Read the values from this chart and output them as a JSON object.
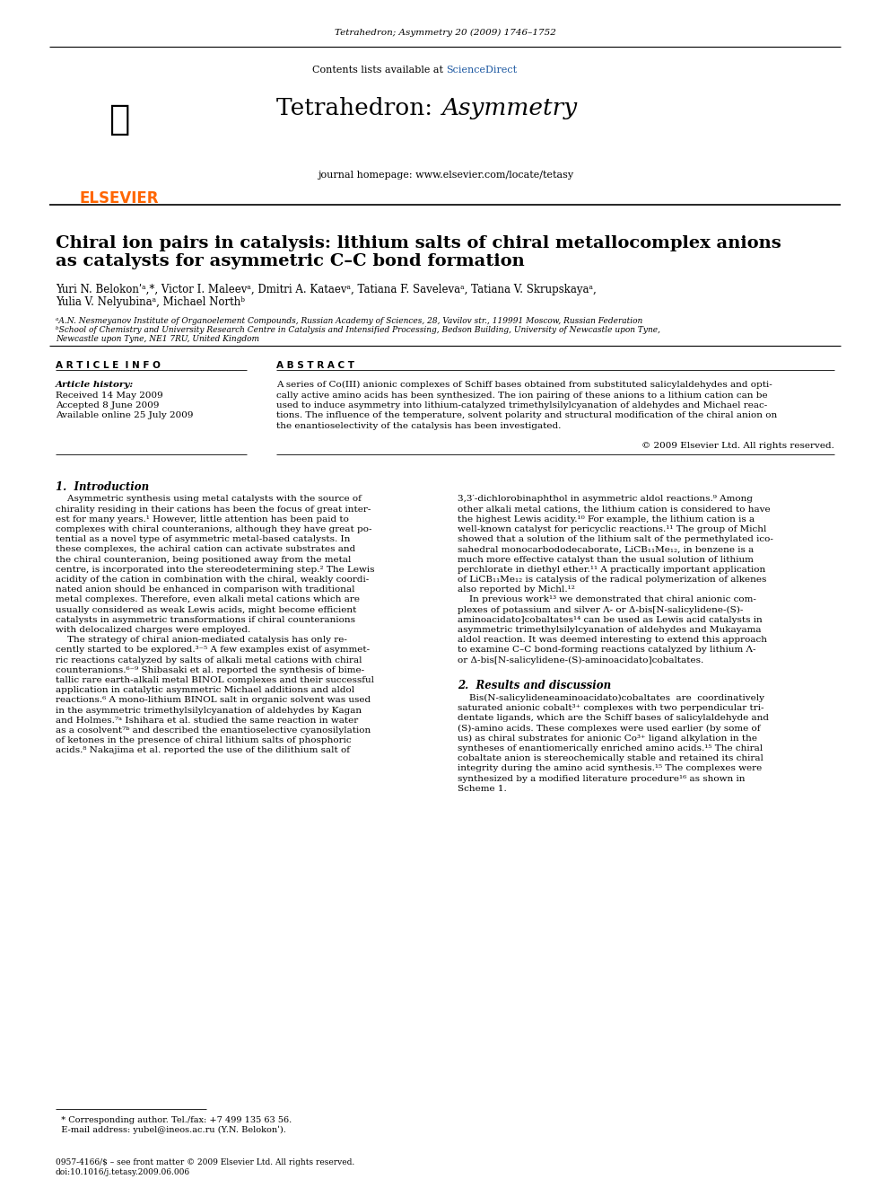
{
  "journal_ref": "Tetrahedron; Asymmetry 20 (2009) 1746–1752",
  "contents_text": "Contents lists available at ",
  "sciencedirect_text": "ScienceDirect",
  "journal_name1": "Tetrahedron: ",
  "journal_name2": "Asymmetry",
  "journal_url": "journal homepage: www.elsevier.com/locate/tetasy",
  "elsevier_text": "ELSEVIER",
  "paper_title_line1": "Chiral ion pairs in catalysis: lithium salts of chiral metallocomplex anions",
  "paper_title_line2": "as catalysts for asymmetric C–C bond formation",
  "authors_line1": "Yuri N. Belokonʹᵃ,*, Victor I. Maleevᵃ, Dmitri A. Kataevᵃ, Tatiana F. Savelevaᵃ, Tatiana V. Skrupskayaᵃ,",
  "authors_line2": "Yulia V. Nelyubinaᵃ, Michael Northᵇ",
  "affil_a": "ᵃA.N. Nesmeyanov Institute of Organoelement Compounds, Russian Academy of Sciences, 28, Vavilov str., 119991 Moscow, Russian Federation",
  "affil_b": "ᵇSchool of Chemistry and University Research Centre in Catalysis and Intensified Processing, Bedson Building, University of Newcastle upon Tyne,",
  "affil_b2": "Newcastle upon Tyne, NE1 7RU, United Kingdom",
  "article_info_header": "A R T I C L E  I N F O",
  "abstract_header": "A B S T R A C T",
  "article_history_label": "Article history:",
  "received": "Received 14 May 2009",
  "accepted": "Accepted 8 June 2009",
  "available": "Available online 25 July 2009",
  "abstract_text_lines": [
    "A series of Co(III) anionic complexes of Schiff bases obtained from substituted salicylaldehydes and opti-",
    "cally active amino acids has been synthesized. The ion pairing of these anions to a lithium cation can be",
    "used to induce asymmetry into lithium-catalyzed trimethylsilylcyanation of aldehydes and Michael reac-",
    "tions. The influence of the temperature, solvent polarity and structural modification of the chiral anion on",
    "the enantioselectivity of the catalysis has been investigated."
  ],
  "copyright": "© 2009 Elsevier Ltd. All rights reserved.",
  "intro_header": "1.  Introduction",
  "intro_col1_lines": [
    "    Asymmetric synthesis using metal catalysts with the source of",
    "chirality residing in their cations has been the focus of great inter-",
    "est for many years.¹ However, little attention has been paid to",
    "complexes with chiral counteranions, although they have great po-",
    "tential as a novel type of asymmetric metal-based catalysts. In",
    "these complexes, the achiral cation can activate substrates and",
    "the chiral counteranion, being positioned away from the metal",
    "centre, is incorporated into the stereodetermining step.² The Lewis",
    "acidity of the cation in combination with the chiral, weakly coordi-",
    "nated anion should be enhanced in comparison with traditional",
    "metal complexes. Therefore, even alkali metal cations which are",
    "usually considered as weak Lewis acids, might become efficient",
    "catalysts in asymmetric transformations if chiral counteranions",
    "with delocalized charges were employed.",
    "    The strategy of chiral anion-mediated catalysis has only re-",
    "cently started to be explored.³⁻⁵ A few examples exist of asymmet-",
    "ric reactions catalyzed by salts of alkali metal cations with chiral",
    "counteranions.⁶⁻⁹ Shibasaki et al. reported the synthesis of bime-",
    "tallic rare earth-alkali metal BINOL complexes and their successful",
    "application in catalytic asymmetric Michael additions and aldol",
    "reactions.⁶ A mono-lithium BINOL salt in organic solvent was used",
    "in the asymmetric trimethylsilylcyanation of aldehydes by Kagan",
    "and Holmes.⁷ᵃ Ishihara et al. studied the same reaction in water",
    "as a cosolvent⁷ᵇ and described the enantioselective cyanosilylation",
    "of ketones in the presence of chiral lithium salts of phosphoric",
    "acids.⁸ Nakajima et al. reported the use of the dilithium salt of"
  ],
  "intro_col2_lines": [
    "3,3′-dichlorobinaphthol in asymmetric aldol reactions.⁹ Among",
    "other alkali metal cations, the lithium cation is considered to have",
    "the highest Lewis acidity.¹⁰ For example, the lithium cation is a",
    "well-known catalyst for pericyclic reactions.¹¹ The group of Michl",
    "showed that a solution of the lithium salt of the permethylated ico-",
    "sahedral monocarbododecaborate, LiCB₁₁Me₁₂, in benzene is a",
    "much more effective catalyst than the usual solution of lithium",
    "perchlorate in diethyl ether.¹¹ A practically important application",
    "of LiCB₁₁Me₁₂ is catalysis of the radical polymerization of alkenes",
    "also reported by Michl.¹²",
    "    In previous work¹³ we demonstrated that chiral anionic com-",
    "plexes of potassium and silver Λ- or Δ-bis[N-salicylidene-(S)-",
    "aminoacidato]cobaltates¹⁴ can be used as Lewis acid catalysts in",
    "asymmetric trimethylsilylcyanation of aldehydes and Mukayama",
    "aldol reaction. It was deemed interesting to extend this approach",
    "to examine C–C bond-forming reactions catalyzed by lithium Λ-",
    "or Δ-bis[N-salicylidene-(S)-aminoacidato]cobaltates."
  ],
  "results_header": "2.  Results and discussion",
  "results_col2_lines": [
    "    Bis(N-salicylideneaminoacidato)cobaltates  are  coordinatively",
    "saturated anionic cobalt³⁺ complexes with two perpendicular tri-",
    "dentate ligands, which are the Schiff bases of salicylaldehyde and",
    "(S)-amino acids. These complexes were used earlier (by some of",
    "us) as chiral substrates for anionic Co³⁺ ligand alkylation in the",
    "syntheses of enantiomerically enriched amino acids.¹⁵ The chiral",
    "cobaltate anion is stereochemically stable and retained its chiral",
    "integrity during the amino acid synthesis.¹⁵ The complexes were",
    "synthesized by a modified literature procedure¹⁶ as shown in",
    "Scheme 1."
  ],
  "footnote1": "  * Corresponding author. Tel./fax: +7 499 135 63 56.",
  "footnote2": "  E-mail address: yubel@ineos.ac.ru (Y.N. Belokonʹ).",
  "footer1": "0957-4166/$ – see front matter © 2009 Elsevier Ltd. All rights reserved.",
  "footer2": "doi:10.1016/j.tetasy.2009.06.006",
  "elsevier_orange": "#FF6600",
  "sciencedirect_blue": "#1a56a0",
  "header_bg": "#e8e8e8",
  "black_bar": "#000000"
}
